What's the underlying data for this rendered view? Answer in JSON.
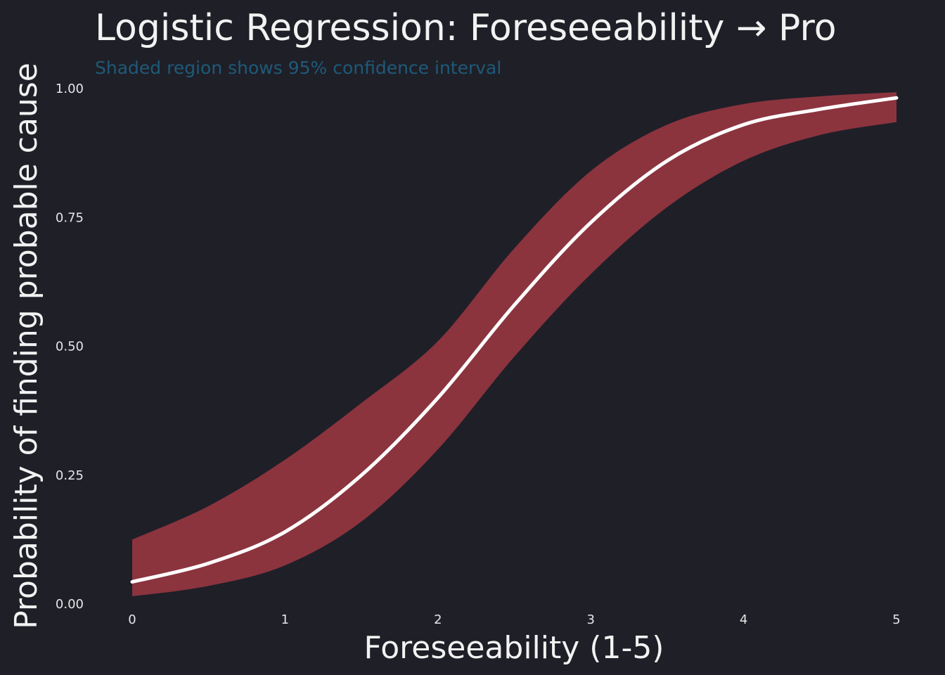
{
  "colors": {
    "background": "#1f1f28",
    "band": "#8b343e",
    "line": "#ffffff",
    "title": "#f2f2f2",
    "subtitle": "#1e5a78",
    "ticks": "#e6e6e6"
  },
  "chart_data": {
    "type": "line",
    "title": "Logistic Regression: Foreseeability → Pro",
    "subtitle": "Shaded region shows 95% confidence interval",
    "xlabel": "Foreseeability (1-5)",
    "ylabel": "Probability of finding probable cause",
    "xlim": [
      0,
      5
    ],
    "ylim": [
      0,
      1
    ],
    "grid": false,
    "legend": "none",
    "x_ticks": [
      0,
      1,
      2,
      3,
      4,
      5
    ],
    "x_tick_labels": [
      "0",
      "1",
      "2",
      "3",
      "4",
      "5"
    ],
    "y_ticks": [
      0,
      0.25,
      0.5,
      0.75,
      1
    ],
    "y_tick_labels": [
      "0.00",
      "0.25",
      "0.50",
      "0.75",
      "1.00"
    ],
    "series": [
      {
        "kind": "line",
        "x": [
          0,
          0.5,
          1,
          1.5,
          2,
          2.5,
          3,
          3.5,
          4,
          4.5,
          5
        ],
        "y": [
          0.043,
          0.079,
          0.14,
          0.25,
          0.4,
          0.58,
          0.74,
          0.86,
          0.93,
          0.96,
          0.982
        ]
      },
      {
        "kind": "band",
        "x": [
          0,
          0.5,
          1,
          1.5,
          2,
          2.5,
          3,
          3.5,
          4,
          4.5,
          5
        ],
        "lower": [
          0.015,
          0.035,
          0.075,
          0.16,
          0.3,
          0.48,
          0.64,
          0.77,
          0.86,
          0.91,
          0.935
        ],
        "upper": [
          0.125,
          0.19,
          0.28,
          0.39,
          0.51,
          0.69,
          0.84,
          0.93,
          0.97,
          0.985,
          0.993
        ]
      }
    ]
  }
}
